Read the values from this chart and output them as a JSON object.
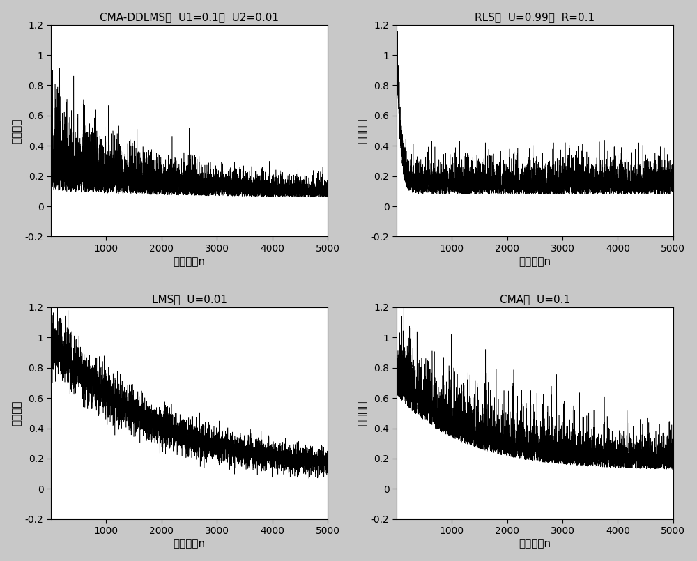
{
  "titles": [
    "CMA-DDLMS，  U1=0.1，  U2=0.01",
    "RLS，  U=0.99，  R=0.1",
    "LMS，  U=0.01",
    "CMA，  U=0.1"
  ],
  "xlabel": "迭代次数n",
  "ylabel": "误差幅度",
  "xlim": [
    0,
    5000
  ],
  "ylim": [
    -0.2,
    1.2
  ],
  "yticks": [
    -0.2,
    0,
    0.2,
    0.4,
    0.6,
    0.8,
    1.0,
    1.2
  ],
  "xticks": [
    1000,
    2000,
    3000,
    4000,
    5000
  ],
  "n_points": 5000,
  "line_color": "#000000",
  "bg_color": "#ffffff",
  "fig_bg_color": "#c8c8c8",
  "title_fontsize": 11,
  "label_fontsize": 11,
  "tick_fontsize": 10
}
